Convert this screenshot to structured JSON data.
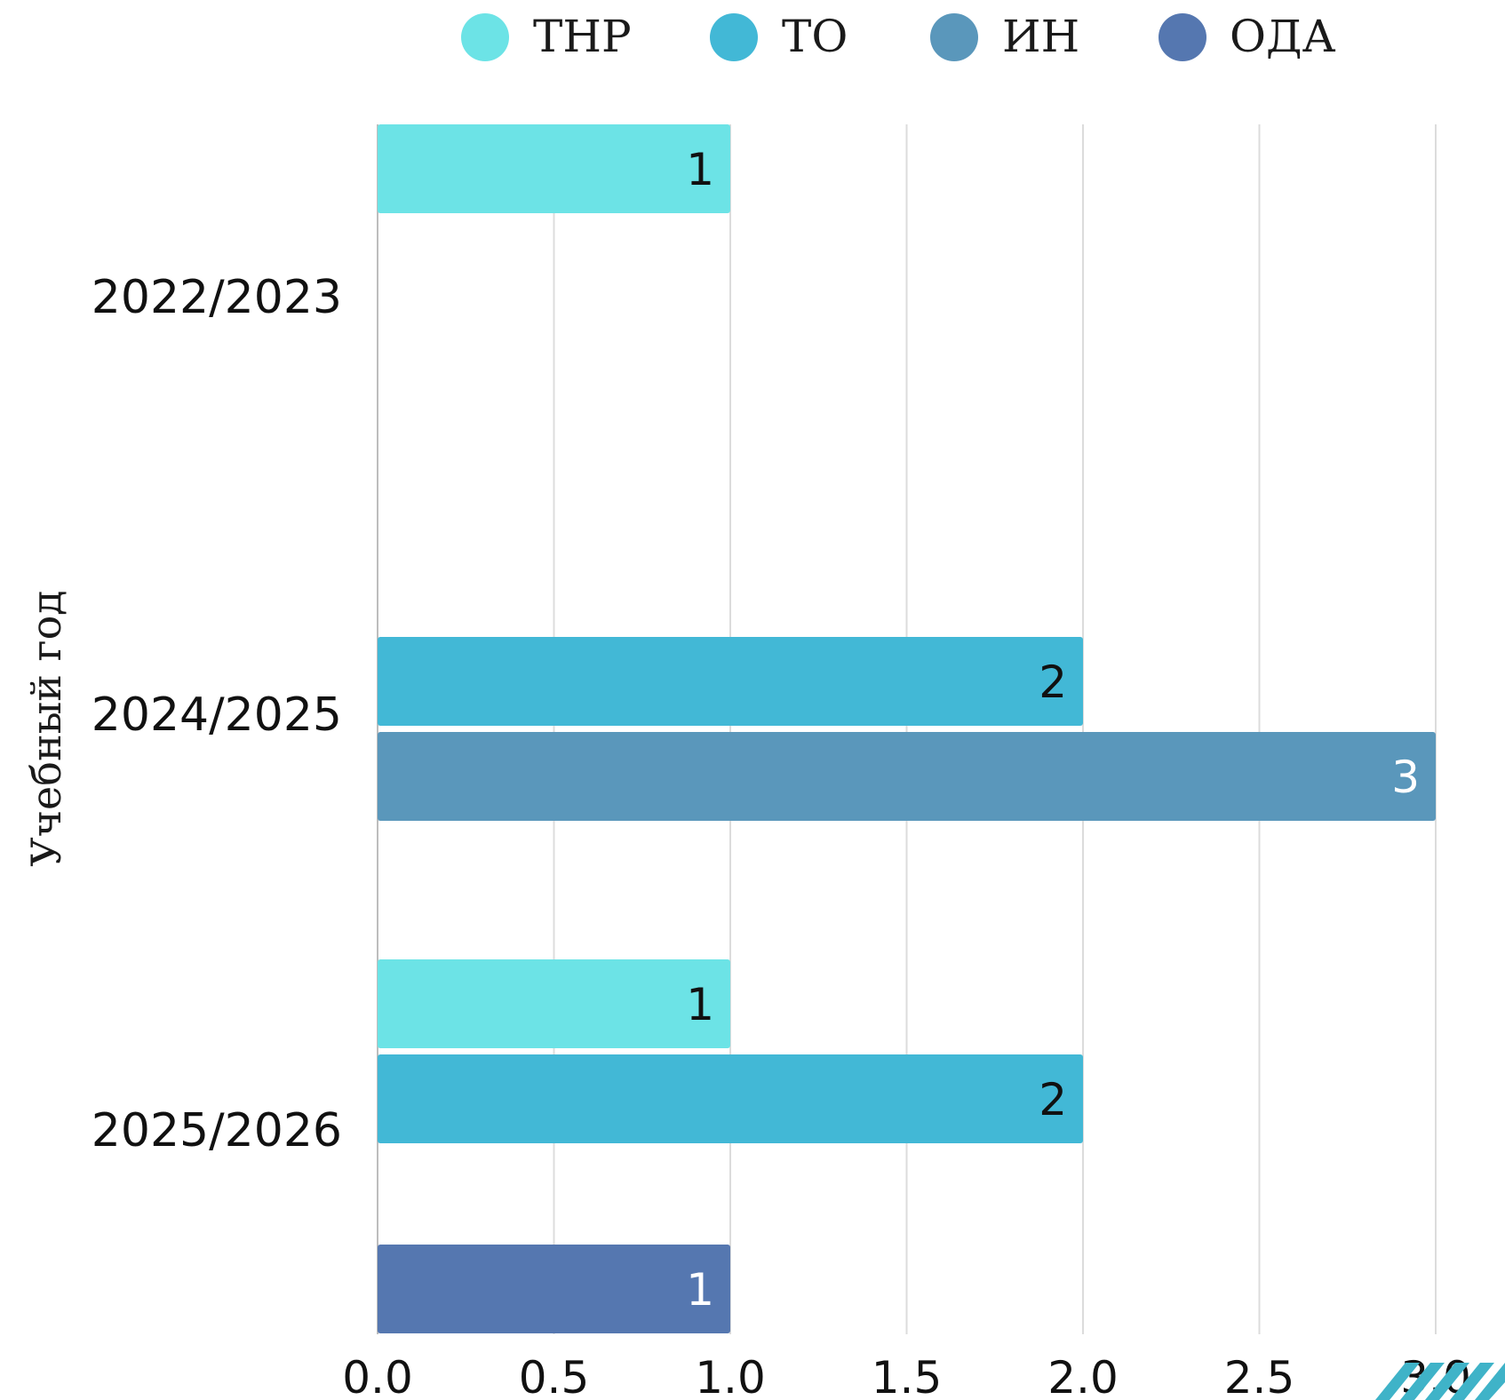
{
  "chart_data": {
    "type": "bar",
    "orientation": "horizontal",
    "categories": [
      "2022/2023",
      "2024/2025",
      "2025/2026"
    ],
    "series": [
      {
        "name": "ТНР",
        "color": "#6ce3e6",
        "values": [
          1,
          null,
          1
        ]
      },
      {
        "name": "ТО",
        "color": "#42b8d6",
        "values": [
          null,
          2,
          2
        ]
      },
      {
        "name": "ИН",
        "color": "#5a97bb",
        "values": [
          null,
          3,
          null
        ]
      },
      {
        "name": "ОДА",
        "color": "#5577b0",
        "values": [
          null,
          null,
          1
        ]
      }
    ],
    "value_label_colors": [
      "#111111",
      "#111111",
      "#ffffff",
      "#ffffff"
    ],
    "ylabel": "Учебный год",
    "xlabel": "",
    "xlim": [
      0,
      3
    ],
    "xticks": [
      "0.0",
      "0.5",
      "1.0",
      "1.5",
      "2.0",
      "2.5",
      "3.0"
    ],
    "grid": "vertical",
    "legend_position": "top"
  }
}
